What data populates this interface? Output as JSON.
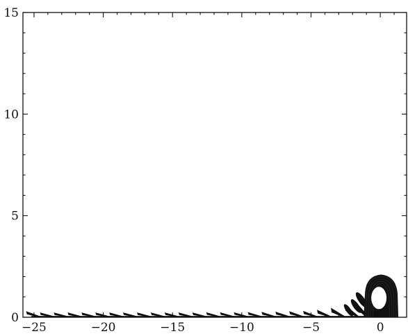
{
  "chart_data": {
    "type": "contour",
    "title": "",
    "xlabel": "",
    "ylabel": "",
    "xlim": [
      -25.8,
      1.9
    ],
    "ylim": [
      0,
      15
    ],
    "x_ticks": [
      -25,
      -20,
      -15,
      -10,
      -5,
      0
    ],
    "x_tick_labels": [
      "−25",
      "−20",
      "−15",
      "−10",
      "−5",
      "0"
    ],
    "y_ticks": [
      0,
      5,
      10,
      15
    ],
    "y_tick_labels": [
      "0",
      "5",
      "10",
      "15"
    ],
    "grid": false,
    "legend": "none",
    "ink_color": "#111111",
    "body": {
      "shape": "dome",
      "x_range": [
        -1.2,
        1.3
      ],
      "y_range": [
        0,
        2.1
      ],
      "hole_center": [
        -0.1,
        0.95
      ],
      "hole_radius": 0.55
    },
    "wake": {
      "x_range": [
        -25.2,
        -0.5
      ],
      "y_range": [
        0,
        0.3
      ],
      "streak_x": [
        -25,
        -24,
        -23,
        -22,
        -21,
        -20,
        -19,
        -18,
        -17,
        -16,
        -15,
        -14,
        -13,
        -12,
        -11,
        -10,
        -9,
        -8,
        -7,
        -6,
        -5,
        -4,
        -3,
        -2,
        -1.3
      ],
      "streak_height": [
        0.28,
        0.22,
        0.22,
        0.22,
        0.22,
        0.22,
        0.22,
        0.22,
        0.22,
        0.22,
        0.22,
        0.22,
        0.22,
        0.23,
        0.23,
        0.23,
        0.24,
        0.25,
        0.26,
        0.28,
        0.3,
        0.35,
        0.45,
        0.6,
        0.8
      ]
    }
  }
}
